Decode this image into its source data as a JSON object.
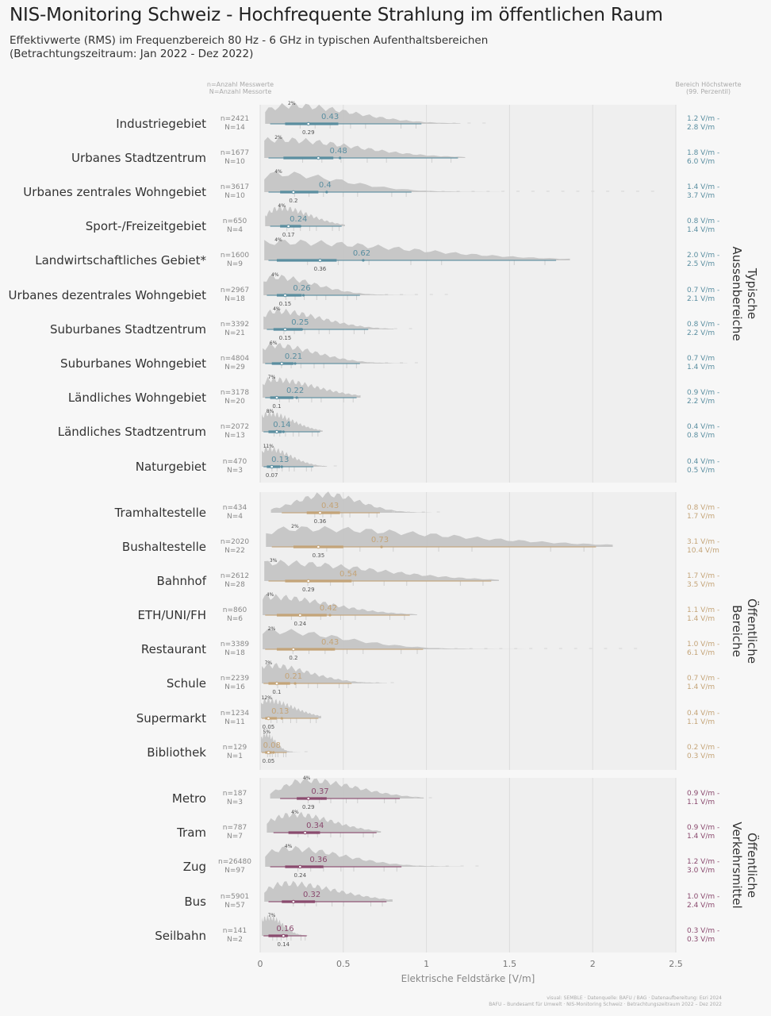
{
  "title": "NIS-Monitoring Schweiz - Hochfrequente Strahlung im öffentlichen Raum",
  "subtitle_line1": "Effektivwerte (RMS) im Frequenzbereich 80 Hz - 6 GHz in typischen Aufenthaltsbereichen",
  "subtitle_line2": "(Betrachtungszeitraum: Jan 2022 - Dez 2022)",
  "header_left_line1": "n=Anzahl Messwerte",
  "header_left_line2": "N=Anzahl Messorte",
  "header_right_line1": "Bereich Höchstwerte",
  "header_right_line2": "(99. Perzentil)",
  "caption_line1": "visual: SEMBLE · Datenquelle: BAFU / BAG · Datenaufbereitung: Esri 2024",
  "caption_line2": "BAFU – Bundesamt für Umwelt · NIS-Monitoring Schweiz · Betrachtungszeitraum 2022 – Dez 2022",
  "colors": {
    "outdoor": "#5a8ea0",
    "public": "#c4a478",
    "transport": "#8a4a6e",
    "density": "#c4c4c4",
    "panel": "#efefef"
  },
  "chart_data": {
    "type": "ridgeline",
    "xlabel": "Elektrische Feldstärke [V/m]",
    "xlim": [
      0,
      2.5
    ],
    "xticks": [
      "0",
      "0.5",
      "1",
      "1.5",
      "2",
      "2.5"
    ],
    "grid": true,
    "groups": [
      {
        "name": "Typische Aussenbereiche",
        "name_line1": "Typische",
        "name_line2": "Aussenbereiche",
        "color_key": "outdoor",
        "items": [
          {
            "label": "Industriegebiet",
            "n": "n=2421",
            "N": "N=14",
            "mean": 0.43,
            "mean_label": "0.43",
            "median": 0.29,
            "median_label": "0.29",
            "p25": 0.15,
            "p75": 0.47,
            "p5": 0.06,
            "p95": 0.97,
            "mode_label": "2%",
            "mode": 0.18,
            "max": 1.35,
            "range_low": "1.2 V/m -",
            "range_high": "2.8 V/m"
          },
          {
            "label": "Urbanes Stadtzentrum",
            "n": "n=1677",
            "N": "N=10",
            "mean": 0.48,
            "mean_label": "0.48",
            "median": 0.35,
            "median_label": "",
            "p25": 0.14,
            "p75": 0.44,
            "p5": 0.05,
            "p95": 1.19,
            "mode_label": "2%",
            "mode": 0.1,
            "max": 1.2,
            "range_low": "1.8 V/m -",
            "range_high": "6.0 V/m"
          },
          {
            "label": "Urbanes zentrales Wohngebiet",
            "n": "n=3617",
            "N": "N=10",
            "mean": 0.4,
            "mean_label": "0.4",
            "median": 0.2,
            "median_label": "0.2",
            "p25": 0.12,
            "p75": 0.35,
            "p5": 0.05,
            "p95": 0.91,
            "mode_label": "4%",
            "mode": 0.1,
            "max": 2.4,
            "range_low": "1.4 V/m -",
            "range_high": "3.7 V/m"
          },
          {
            "label": "Sport-/Freizeitgebiet",
            "n": "n=650",
            "N": "N=4",
            "mean": 0.24,
            "mean_label": "0.24",
            "median": 0.17,
            "median_label": "0.17",
            "p25": 0.12,
            "p75": 0.24,
            "p5": 0.06,
            "p95": 0.49,
            "mode_label": "4%",
            "mode": 0.12,
            "max": 0.5,
            "range_low": "0.8 V/m -",
            "range_high": "1.4 V/m"
          },
          {
            "label": "Landwirtschaftliches Gebiet*",
            "n": "n=1600",
            "N": "N=9",
            "mean": 0.62,
            "mean_label": "0.62",
            "median": 0.36,
            "median_label": "0.36",
            "p25": 0.1,
            "p75": 0.46,
            "p5": 0.05,
            "p95": 1.78,
            "mode_label": "4%",
            "mode": 0.1,
            "max": 1.8,
            "range_low": "2.0 V/m -",
            "range_high": "2.5 V/m"
          },
          {
            "label": "Urbanes dezentrales Wohngebiet",
            "n": "n=2967",
            "N": "N=18",
            "mean": 0.26,
            "mean_label": "0.26",
            "median": 0.15,
            "median_label": "0.15",
            "p25": 0.1,
            "p75": 0.25,
            "p5": 0.04,
            "p95": 0.6,
            "mode_label": "4%",
            "mode": 0.08,
            "max": 1.2,
            "range_low": "0.7 V/m -",
            "range_high": "2.1 V/m"
          },
          {
            "label": "Suburbanes Stadtzentrum",
            "n": "n=3392",
            "N": "N=21",
            "mean": 0.25,
            "mean_label": "0.25",
            "median": 0.15,
            "median_label": "0.15",
            "p25": 0.08,
            "p75": 0.25,
            "p5": 0.04,
            "p95": 0.65,
            "mode_label": "4%",
            "mode": 0.09,
            "max": 0.9,
            "range_low": "0.8 V/m -",
            "range_high": "2.2 V/m"
          },
          {
            "label": "Suburbanes Wohngebiet",
            "n": "n=4804",
            "N": "N=29",
            "mean": 0.21,
            "mean_label": "0.21",
            "median": 0.13,
            "median_label": "",
            "p25": 0.07,
            "p75": 0.2,
            "p5": 0.03,
            "p95": 0.6,
            "mode_label": "6%",
            "mode": 0.07,
            "max": 1.0,
            "range_low": "0.7 V/m",
            "range_high": "1.4 V/m"
          },
          {
            "label": "Ländliches Wohngebiet",
            "n": "n=3178",
            "N": "N=20",
            "mean": 0.22,
            "mean_label": "0.22",
            "median": 0.1,
            "median_label": "0.1",
            "p25": 0.06,
            "p75": 0.2,
            "p5": 0.03,
            "p95": 0.58,
            "mode_label": "7%",
            "mode": 0.06,
            "max": 0.6,
            "range_low": "0.9 V/m -",
            "range_high": "2.2 V/m"
          },
          {
            "label": "Ländliches Stadtzentrum",
            "n": "n=2072",
            "N": "N=13",
            "mean": 0.14,
            "mean_label": "0.14",
            "median": 0.1,
            "median_label": "",
            "p25": 0.05,
            "p75": 0.13,
            "p5": 0.02,
            "p95": 0.36,
            "mode_label": "8%",
            "mode": 0.05,
            "max": 0.36,
            "range_low": "0.4 V/m -",
            "range_high": "0.8 V/m"
          },
          {
            "label": "Naturgebiet",
            "n": "n=470",
            "N": "N=3",
            "mean": 0.13,
            "mean_label": "0.13",
            "median": 0.07,
            "median_label": "0.07",
            "p25": 0.04,
            "p75": 0.12,
            "p5": 0.02,
            "p95": 0.32,
            "mode_label": "11%",
            "mode": 0.04,
            "max": 0.45,
            "range_low": "0.4 V/m -",
            "range_high": "0.5 V/m"
          }
        ]
      },
      {
        "name": "Öffentliche Bereiche",
        "name_line1": "Öffentliche",
        "name_line2": "Bereiche",
        "color_key": "public",
        "items": [
          {
            "label": "Tramhaltestelle",
            "n": "n=434",
            "N": "N=4",
            "mean": 0.43,
            "mean_label": "0.43",
            "median": 0.36,
            "median_label": "0.36",
            "p25": 0.28,
            "p75": 0.48,
            "p5": 0.13,
            "p95": 0.72,
            "mode_label": "",
            "mode": 0.4,
            "max": 1.15,
            "range_low": "0.8 V/m -",
            "range_high": "1.7 V/m"
          },
          {
            "label": "Bushaltestelle",
            "n": "n=2020",
            "N": "N=22",
            "mean": 0.73,
            "mean_label": "0.73",
            "median": 0.35,
            "median_label": "0.35",
            "p25": 0.2,
            "p75": 0.5,
            "p5": 0.07,
            "p95": 2.02,
            "mode_label": "2%",
            "mode": 0.2,
            "max": 2.02,
            "range_low": "3.1 V/m -",
            "range_high": "10.4 V/m"
          },
          {
            "label": "Bahnhof",
            "n": "n=2612",
            "N": "N=28",
            "mean": 0.54,
            "mean_label": "0.54",
            "median": 0.29,
            "median_label": "0.29",
            "p25": 0.15,
            "p75": 0.55,
            "p5": 0.05,
            "p95": 1.39,
            "mode_label": "3%",
            "mode": 0.07,
            "max": 1.45,
            "range_low": "1.7 V/m -",
            "range_high": "3.5 V/m"
          },
          {
            "label": "ETH/UNI/FH",
            "n": "n=860",
            "N": "N=6",
            "mean": 0.42,
            "mean_label": "0.42",
            "median": 0.24,
            "median_label": "0.24",
            "p25": 0.1,
            "p75": 0.4,
            "p5": 0.03,
            "p95": 0.9,
            "mode_label": "4%",
            "mode": 0.05,
            "max": 0.9,
            "range_low": "1.1 V/m -",
            "range_high": "1.4 V/m"
          },
          {
            "label": "Restaurant",
            "n": "n=3389",
            "N": "N=18",
            "mean": 0.43,
            "mean_label": "0.43",
            "median": 0.2,
            "median_label": "0.2",
            "p25": 0.1,
            "p75": 0.45,
            "p5": 0.03,
            "p95": 0.98,
            "mode_label": "2%",
            "mode": 0.06,
            "max": 2.3,
            "range_low": "1.0 V/m -",
            "range_high": "6.1 V/m"
          },
          {
            "label": "Schule",
            "n": "n=2239",
            "N": "N=16",
            "mean": 0.21,
            "mean_label": "0.21",
            "median": 0.1,
            "median_label": "0.1",
            "p25": 0.05,
            "p75": 0.18,
            "p5": 0.02,
            "p95": 0.55,
            "mode_label": "7%",
            "mode": 0.04,
            "max": 0.85,
            "range_low": "0.7 V/m -",
            "range_high": "1.4 V/m"
          },
          {
            "label": "Supermarkt",
            "n": "n=1234",
            "N": "N=11",
            "mean": 0.13,
            "mean_label": "0.13",
            "median": 0.05,
            "median_label": "0.05",
            "p25": 0.03,
            "p75": 0.1,
            "p5": 0.01,
            "p95": 0.35,
            "mode_label": "12%",
            "mode": 0.03,
            "max": 0.35,
            "range_low": "0.4 V/m -",
            "range_high": "1.1 V/m"
          },
          {
            "label": "Bibliothek",
            "n": "n=129",
            "N": "N=1",
            "mean": 0.08,
            "mean_label": "0.08",
            "median": 0.05,
            "median_label": "0.05",
            "p25": 0.03,
            "p75": 0.07,
            "p5": 0.01,
            "p95": 0.16,
            "mode_label": "5%",
            "mode": 0.03,
            "max": 0.3,
            "range_low": "0.2 V/m -",
            "range_high": "0.3 V/m"
          }
        ]
      },
      {
        "name": "Öffentliche Verkehrsmittel",
        "name_line1": "Öffentliche",
        "name_line2": "Verkehrsmittel",
        "color_key": "transport",
        "items": [
          {
            "label": "Metro",
            "n": "n=187",
            "N": "N=3",
            "mean": 0.37,
            "mean_label": "0.37",
            "median": 0.29,
            "median_label": "0.29",
            "p25": 0.22,
            "p75": 0.4,
            "p5": 0.12,
            "p95": 0.84,
            "mode_label": "4%",
            "mode": 0.27,
            "max": 1.1,
            "range_low": "0.9 V/m -",
            "range_high": "1.1 V/m"
          },
          {
            "label": "Tram",
            "n": "n=787",
            "N": "N=7",
            "mean": 0.34,
            "mean_label": "0.34",
            "median": 0.27,
            "median_label": "",
            "p25": 0.17,
            "p75": 0.36,
            "p5": 0.08,
            "p95": 0.7,
            "mode_label": "4%",
            "mode": 0.2,
            "max": 0.7,
            "range_low": "0.9 V/m -",
            "range_high": "1.4 V/m"
          },
          {
            "label": "Zug",
            "n": "n=26480",
            "N": "N=97",
            "mean": 0.36,
            "mean_label": "0.36",
            "median": 0.24,
            "median_label": "0.24",
            "p25": 0.15,
            "p75": 0.38,
            "p5": 0.06,
            "p95": 0.85,
            "mode_label": "4%",
            "mode": 0.16,
            "max": 1.35,
            "range_low": "1.2 V/m -",
            "range_high": "3.0 V/m"
          },
          {
            "label": "Bus",
            "n": "n=5901",
            "N": "N=57",
            "mean": 0.32,
            "mean_label": "0.32",
            "median": 0.2,
            "median_label": "",
            "p25": 0.13,
            "p75": 0.33,
            "p5": 0.05,
            "p95": 0.76,
            "mode_label": "",
            "mode": 0.15,
            "max": 0.8,
            "range_low": "1.0 V/m -",
            "range_high": "2.4 V/m"
          },
          {
            "label": "Seilbahn",
            "n": "n=141",
            "N": "N=2",
            "mean": 0.16,
            "mean_label": "0.16",
            "median": 0.14,
            "median_label": "0.14",
            "p25": 0.05,
            "p75": 0.16,
            "p5": 0.02,
            "p95": 0.28,
            "mode_label": "7%",
            "mode": 0.06,
            "max": 0.3,
            "range_low": "0.3 V/m -",
            "range_high": "0.3 V/m"
          }
        ]
      }
    ]
  }
}
